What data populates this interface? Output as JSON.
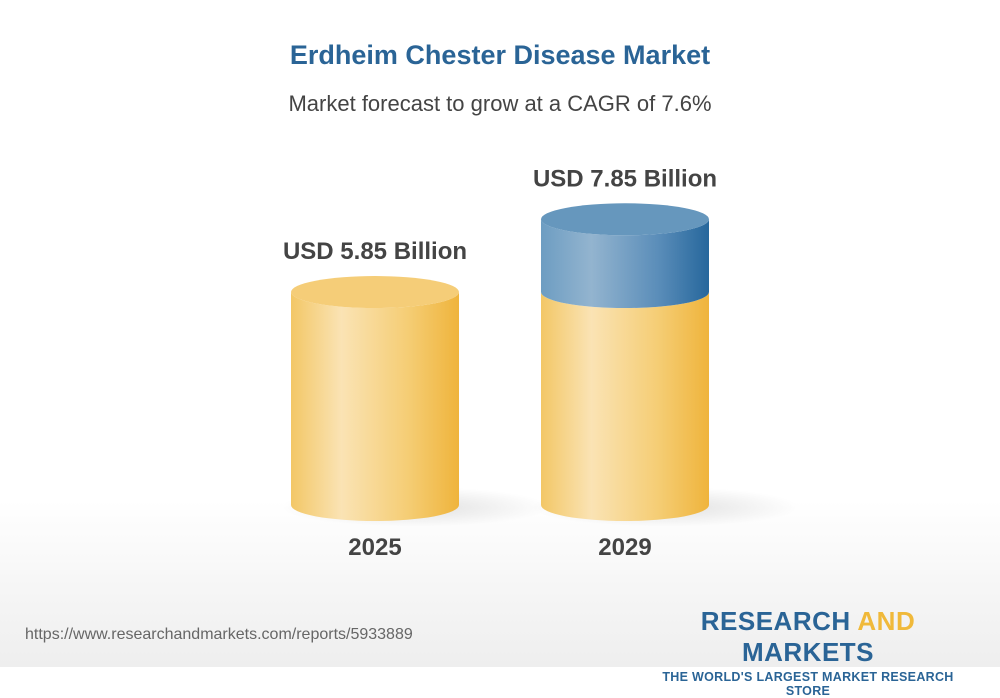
{
  "chart_data": {
    "type": "bar",
    "title": "Erdheim Chester Disease Market",
    "subtitle": "Market forecast to grow at a CAGR of 7.6%",
    "categories": [
      "2025",
      "2029"
    ],
    "values": [
      5.85,
      7.85
    ],
    "value_labels": [
      "USD 5.85 Billion",
      "USD 7.85 Billion"
    ],
    "unit": "USD Billion",
    "colors": {
      "base": "#f3c35a",
      "growth": "#2a6496",
      "title": "#2a6496"
    }
  },
  "footer": {
    "url": "https://www.researchandmarkets.com/reports/5933889",
    "logo_part1": "RESEARCH ",
    "logo_part2": "AND",
    "logo_part3": " MARKETS",
    "tagline": "THE WORLD'S LARGEST MARKET RESEARCH STORE"
  }
}
